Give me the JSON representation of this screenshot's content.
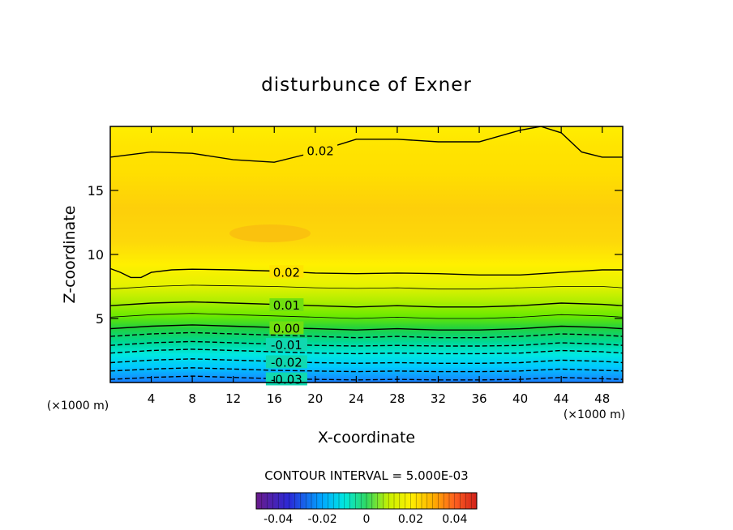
{
  "chart_data": {
    "type": "contour",
    "title": "disturbunce of Exner",
    "xlabel": "X-coordinate",
    "ylabel": "Z-coordinate",
    "x_unit_left": "(×1000 m)",
    "x_unit_right": "(×1000 m)",
    "xlim": [
      0,
      50
    ],
    "ylim": [
      0,
      20
    ],
    "x_ticks": [
      4,
      8,
      12,
      16,
      20,
      24,
      28,
      32,
      36,
      40,
      44,
      48
    ],
    "x_tick_labels": [
      "4",
      "8",
      "12",
      "16",
      "20",
      "24",
      "28",
      "32",
      "36",
      "40",
      "44",
      "48"
    ],
    "y_ticks": [
      5,
      10,
      15
    ],
    "y_tick_labels": [
      "5",
      "10",
      "15"
    ],
    "contour_interval_text": "CONTOUR INTERVAL = 5.000E-03",
    "contour_interval": 0.005,
    "colorbar": {
      "range": [
        -0.05,
        0.05
      ],
      "tick_values": [
        -0.04,
        -0.02,
        0,
        0.02,
        0.04
      ],
      "tick_labels": [
        "-0.04",
        "-0.02",
        "0",
        "0.02",
        "0.04"
      ]
    },
    "contours": [
      {
        "level": 0.02,
        "label": "0.02",
        "label_x": 20.5,
        "style": "solid",
        "x": [
          0,
          4,
          8,
          12,
          16,
          20,
          24,
          28,
          32,
          36,
          40,
          42,
          44,
          46,
          48,
          50
        ],
        "y": [
          17.6,
          18.0,
          17.9,
          17.4,
          17.2,
          18.0,
          19.0,
          19.0,
          18.8,
          18.8,
          19.7,
          20.0,
          19.5,
          18.0,
          17.6,
          17.6
        ]
      },
      {
        "level": 0.02,
        "label": "0.02",
        "label_x": 17.2,
        "style": "solid",
        "x": [
          0,
          1,
          2,
          3,
          4,
          6,
          8,
          12,
          16,
          20,
          24,
          28,
          32,
          36,
          40,
          44,
          48,
          50
        ],
        "y": [
          8.9,
          8.6,
          8.2,
          8.2,
          8.6,
          8.8,
          8.85,
          8.8,
          8.7,
          8.55,
          8.5,
          8.55,
          8.5,
          8.4,
          8.4,
          8.6,
          8.8,
          8.8
        ]
      },
      {
        "level": 0.015,
        "style": "thin",
        "x": [
          0,
          4,
          8,
          12,
          16,
          20,
          24,
          28,
          32,
          36,
          40,
          44,
          48,
          50
        ],
        "y": [
          7.3,
          7.5,
          7.6,
          7.55,
          7.5,
          7.4,
          7.35,
          7.4,
          7.3,
          7.3,
          7.4,
          7.5,
          7.5,
          7.4
        ]
      },
      {
        "level": 0.01,
        "label": "0.01",
        "label_x": 17.2,
        "style": "solid",
        "x": [
          0,
          4,
          8,
          12,
          16,
          20,
          24,
          28,
          32,
          36,
          40,
          44,
          48,
          50
        ],
        "y": [
          6.0,
          6.2,
          6.3,
          6.2,
          6.1,
          6.0,
          5.9,
          6.0,
          5.9,
          5.9,
          6.0,
          6.2,
          6.1,
          6.0
        ]
      },
      {
        "level": 0.005,
        "style": "thin",
        "x": [
          0,
          4,
          8,
          12,
          16,
          20,
          24,
          28,
          32,
          36,
          40,
          44,
          48,
          50
        ],
        "y": [
          5.1,
          5.3,
          5.4,
          5.3,
          5.2,
          5.1,
          5.0,
          5.1,
          5.0,
          5.0,
          5.1,
          5.3,
          5.2,
          5.1
        ]
      },
      {
        "level": 0.0,
        "label": "0.00",
        "label_x": 17.2,
        "style": "solid",
        "x": [
          0,
          4,
          8,
          12,
          16,
          20,
          24,
          28,
          32,
          36,
          40,
          44,
          48,
          50
        ],
        "y": [
          4.2,
          4.4,
          4.5,
          4.4,
          4.3,
          4.2,
          4.1,
          4.2,
          4.1,
          4.1,
          4.2,
          4.4,
          4.3,
          4.2
        ]
      },
      {
        "level": -0.005,
        "style": "dashed",
        "x": [
          0,
          4,
          8,
          12,
          16,
          20,
          24,
          28,
          32,
          36,
          40,
          44,
          48,
          50
        ],
        "y": [
          3.6,
          3.8,
          3.9,
          3.8,
          3.7,
          3.6,
          3.5,
          3.6,
          3.5,
          3.5,
          3.6,
          3.8,
          3.7,
          3.6
        ]
      },
      {
        "level": -0.01,
        "label": "-0.01",
        "label_x": 17.2,
        "style": "dashed",
        "x": [
          0,
          4,
          8,
          12,
          16,
          20,
          24,
          28,
          32,
          36,
          40,
          44,
          48,
          50
        ],
        "y": [
          2.9,
          3.1,
          3.2,
          3.1,
          3.0,
          2.9,
          2.85,
          2.9,
          2.85,
          2.85,
          2.9,
          3.1,
          3.0,
          2.9
        ]
      },
      {
        "level": -0.015,
        "style": "dashed",
        "x": [
          0,
          4,
          8,
          12,
          16,
          20,
          24,
          28,
          32,
          36,
          40,
          44,
          48,
          50
        ],
        "y": [
          2.3,
          2.5,
          2.6,
          2.5,
          2.4,
          2.3,
          2.25,
          2.3,
          2.25,
          2.25,
          2.3,
          2.5,
          2.4,
          2.3
        ]
      },
      {
        "level": -0.02,
        "label": "-0.02",
        "label_x": 17.2,
        "style": "dashed",
        "x": [
          0,
          4,
          8,
          12,
          16,
          20,
          24,
          28,
          32,
          36,
          40,
          44,
          48,
          50
        ],
        "y": [
          1.55,
          1.75,
          1.85,
          1.75,
          1.65,
          1.55,
          1.5,
          1.55,
          1.5,
          1.5,
          1.55,
          1.75,
          1.65,
          1.55
        ]
      },
      {
        "level": -0.025,
        "style": "dashed",
        "x": [
          0,
          4,
          8,
          12,
          16,
          20,
          24,
          28,
          32,
          36,
          40,
          44,
          48,
          50
        ],
        "y": [
          0.9,
          1.05,
          1.15,
          1.05,
          0.95,
          0.9,
          0.85,
          0.9,
          0.85,
          0.85,
          0.9,
          1.05,
          0.95,
          0.9
        ]
      },
      {
        "level": -0.03,
        "label": "-0.03",
        "label_x": 17.2,
        "style": "dashed",
        "x": [
          0,
          4,
          8,
          12,
          16,
          20,
          24,
          28,
          32,
          36,
          40,
          44,
          48,
          50
        ],
        "y": [
          0.25,
          0.4,
          0.5,
          0.4,
          0.3,
          0.25,
          0.2,
          0.25,
          0.2,
          0.2,
          0.25,
          0.4,
          0.3,
          0.25
        ]
      }
    ]
  }
}
